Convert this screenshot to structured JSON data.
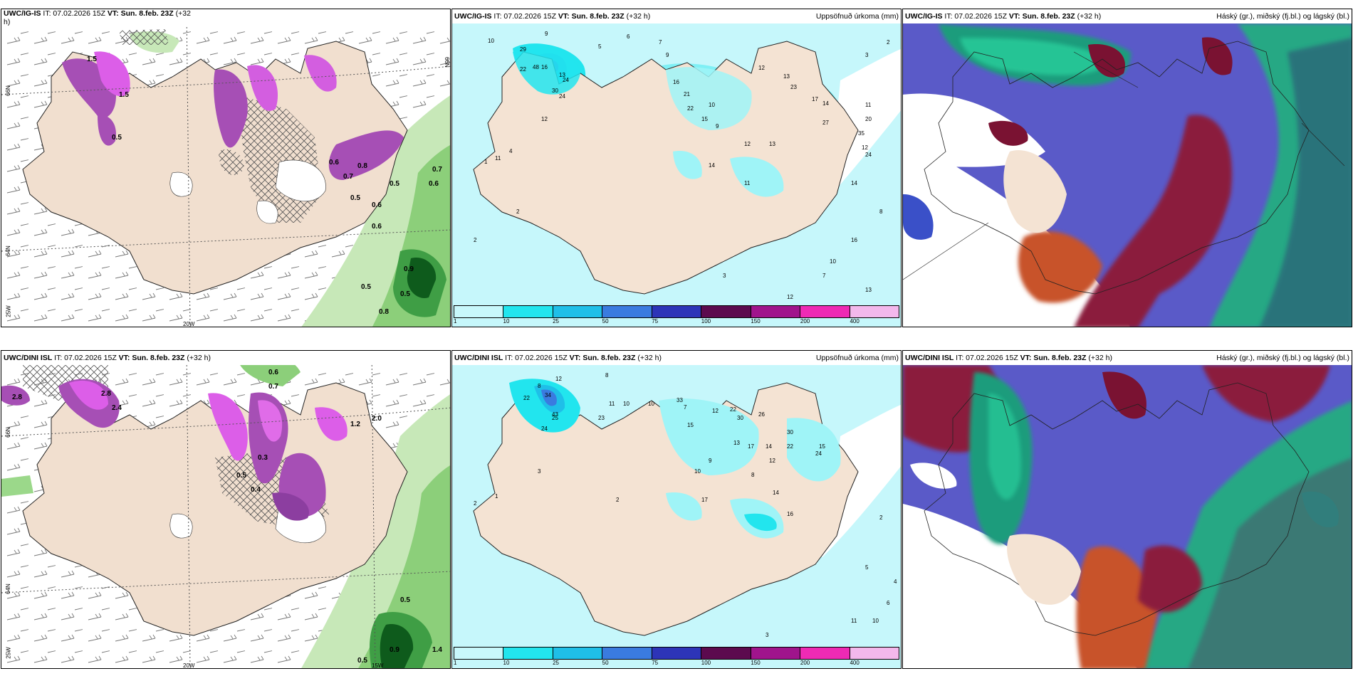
{
  "top": {
    "left": {
      "source": "UWC/IG-IS",
      "it": "IT: 07.02.2026 15Z",
      "vt": "VT: Sun. 8.feb. 23Z",
      "lead": "(+32",
      "lead2": "h)"
    },
    "middle": {
      "source": "UWC/IG-IS",
      "it": "IT: 07.02.2026 15Z",
      "vt": "VT: Sun. 8.feb. 23Z",
      "lead": "(+32 h)",
      "right": "Uppsöfnuð úrkoma (mm)"
    },
    "right": {
      "source": "UWC/IG-IS",
      "it": "IT: 07.02.2026 15Z",
      "vt": "VT: Sun. 8.feb. 23Z",
      "lead": "(+32 h)",
      "right": "Háský (gr.), miðský (fj.bl.) og lágský (bl.)"
    }
  },
  "bottom": {
    "left": {
      "source": "UWC/DINI ISL",
      "it": "IT: 07.02.2026 15Z",
      "vt": "VT: Sun. 8.feb. 23Z",
      "lead": "(+32 h)"
    },
    "middle": {
      "source": "UWC/DINI ISL",
      "it": "IT: 07.02.2026 15Z",
      "vt": "VT: Sun. 8.feb. 23Z",
      "lead": "(+32 h)",
      "right": "Uppsöfnuð úrkoma (mm)"
    },
    "right": {
      "source": "UWC/DINI ISL",
      "it": "IT: 07.02.2026 15Z",
      "vt": "VT: Sun. 8.feb. 23Z",
      "lead": "(+32 h)",
      "right": "Háský (gr.), miðský (fj.bl.) og lágský (bl.)"
    }
  },
  "colorbar": {
    "ticks": [
      "1",
      "10",
      "25",
      "50",
      "75",
      "100",
      "150",
      "200",
      "400"
    ],
    "colors": [
      "#c8f8fb",
      "#22e5ee",
      "#1fbfe8",
      "#3a7be0",
      "#2d34b8",
      "#5c0a4e",
      "#a0148c",
      "#ee2ab4",
      "#f3b8ec"
    ]
  },
  "grid_labels": {
    "top_left": [
      "66N",
      "64N",
      "25W",
      "20W",
      "66N"
    ],
    "bottom_left": [
      "66N",
      "64N",
      "25W",
      "20W",
      "15W"
    ]
  },
  "precip_values_top": [
    "10",
    "9",
    "6",
    "5",
    "7",
    "9",
    "2",
    "3",
    "11",
    "29",
    "48",
    "22",
    "13",
    "16",
    "24",
    "30",
    "24",
    "12",
    "13",
    "23",
    "16",
    "21",
    "22",
    "15",
    "10",
    "9",
    "12",
    "13",
    "17",
    "14",
    "27",
    "20",
    "35",
    "24",
    "12",
    "14",
    "16",
    "10",
    "7",
    "3",
    "2",
    "4",
    "11",
    "12",
    "1",
    "2",
    "8",
    "13",
    "10",
    "15",
    "12",
    "14",
    "11"
  ],
  "precip_values_bottom": [
    "12",
    "8",
    "8",
    "22",
    "34",
    "43",
    "24",
    "25",
    "11",
    "10",
    "10",
    "23",
    "33",
    "7",
    "15",
    "22",
    "30",
    "26",
    "12",
    "13",
    "17",
    "14",
    "30",
    "22",
    "24",
    "15",
    "12",
    "8",
    "9",
    "10",
    "17",
    "14",
    "16",
    "2",
    "3",
    "2",
    "1",
    "2",
    "5",
    "4",
    "6",
    "10",
    "11",
    "3"
  ],
  "snow_values_top": [
    "1.5",
    "1.5",
    "0.5",
    "0.6",
    "0.7",
    "0.8",
    "0.5",
    "0.6",
    "0.5",
    "0.6",
    "0.7",
    "0.6",
    "0.5",
    "0.9",
    "0.8",
    "0.5"
  ],
  "snow_values_bottom": [
    "2.8",
    "2.4",
    "2.8",
    "2.0",
    "1.2",
    "0.6",
    "0.7",
    "0.5",
    "0.9",
    "0.3",
    "0.5",
    "0.4",
    "1.4",
    "0.5"
  ]
}
